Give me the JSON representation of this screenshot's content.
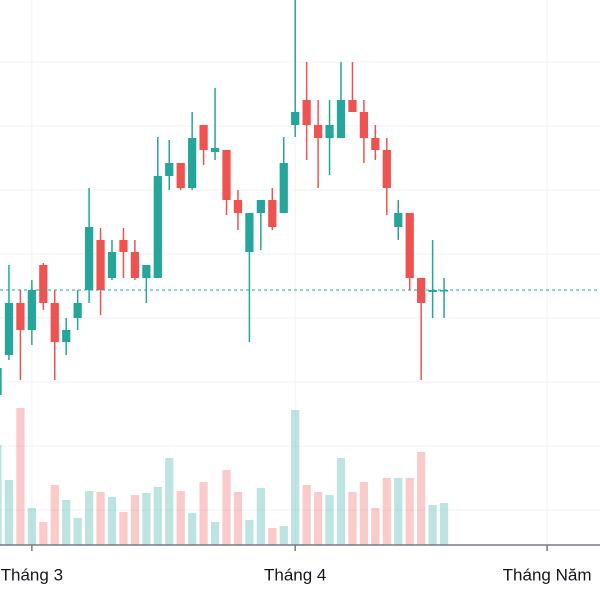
{
  "chart_data": {
    "type": "candlestick",
    "open": [
      5,
      45,
      97,
      70,
      135,
      97,
      58,
      82,
      110,
      160,
      122,
      160,
      148,
      122,
      122,
      224,
      237,
      212,
      275,
      248,
      250,
      200,
      148,
      187,
      200,
      187,
      275,
      300,
      275,
      262,
      262,
      300,
      288,
      262,
      250,
      173,
      187,
      122,
      108,
      110
    ],
    "high": [
      35,
      135,
      110,
      120,
      137,
      110,
      82,
      110,
      212,
      172,
      160,
      172,
      160,
      135,
      263,
      260,
      237,
      288,
      275,
      312,
      250,
      210,
      187,
      200,
      212,
      263,
      400,
      338,
      300,
      300,
      338,
      338,
      300,
      275,
      262,
      200,
      187,
      122,
      160,
      122
    ],
    "low": [
      0,
      40,
      20,
      55,
      90,
      20,
      45,
      70,
      97,
      85,
      120,
      122,
      120,
      97,
      122,
      210,
      210,
      210,
      235,
      240,
      185,
      170,
      58,
      150,
      170,
      187,
      263,
      240,
      212,
      225,
      262,
      288,
      237,
      240,
      185,
      160,
      110,
      20,
      82,
      82
    ],
    "close": [
      32,
      97,
      70,
      110,
      97,
      58,
      70,
      97,
      173,
      110,
      148,
      148,
      122,
      135,
      224,
      237,
      212,
      262,
      250,
      252,
      200,
      187,
      187,
      200,
      173,
      237,
      288,
      275,
      262,
      275,
      300,
      288,
      262,
      250,
      212,
      187,
      122,
      97,
      110,
      110
    ],
    "volume": [
      100,
      65,
      137,
      37,
      23,
      60,
      45,
      27,
      54,
      53,
      48,
      33,
      50,
      52,
      58,
      87,
      54,
      32,
      63,
      23,
      75,
      53,
      25,
      57,
      17,
      19,
      135,
      60,
      53,
      50,
      87,
      53,
      63,
      37,
      67,
      67,
      67,
      93,
      40,
      42
    ],
    "up_color": "#26a69a",
    "down_color": "#ef5350",
    "ylim": [
      -145,
      400
    ],
    "yticks": [
      -110,
      -46,
      18,
      82,
      146,
      210,
      274,
      338
    ],
    "volume_lim": [
      0,
      145
    ],
    "xlim": [
      0.2183406,
      52.620087
    ],
    "xticks": [
      {
        "value": 3,
        "label": "Tháng 3"
      },
      {
        "value": 26,
        "label": "Tháng 4"
      },
      {
        "value": 48,
        "label": "Tháng Năm"
      }
    ],
    "grid": true,
    "last_price_line": true
  }
}
